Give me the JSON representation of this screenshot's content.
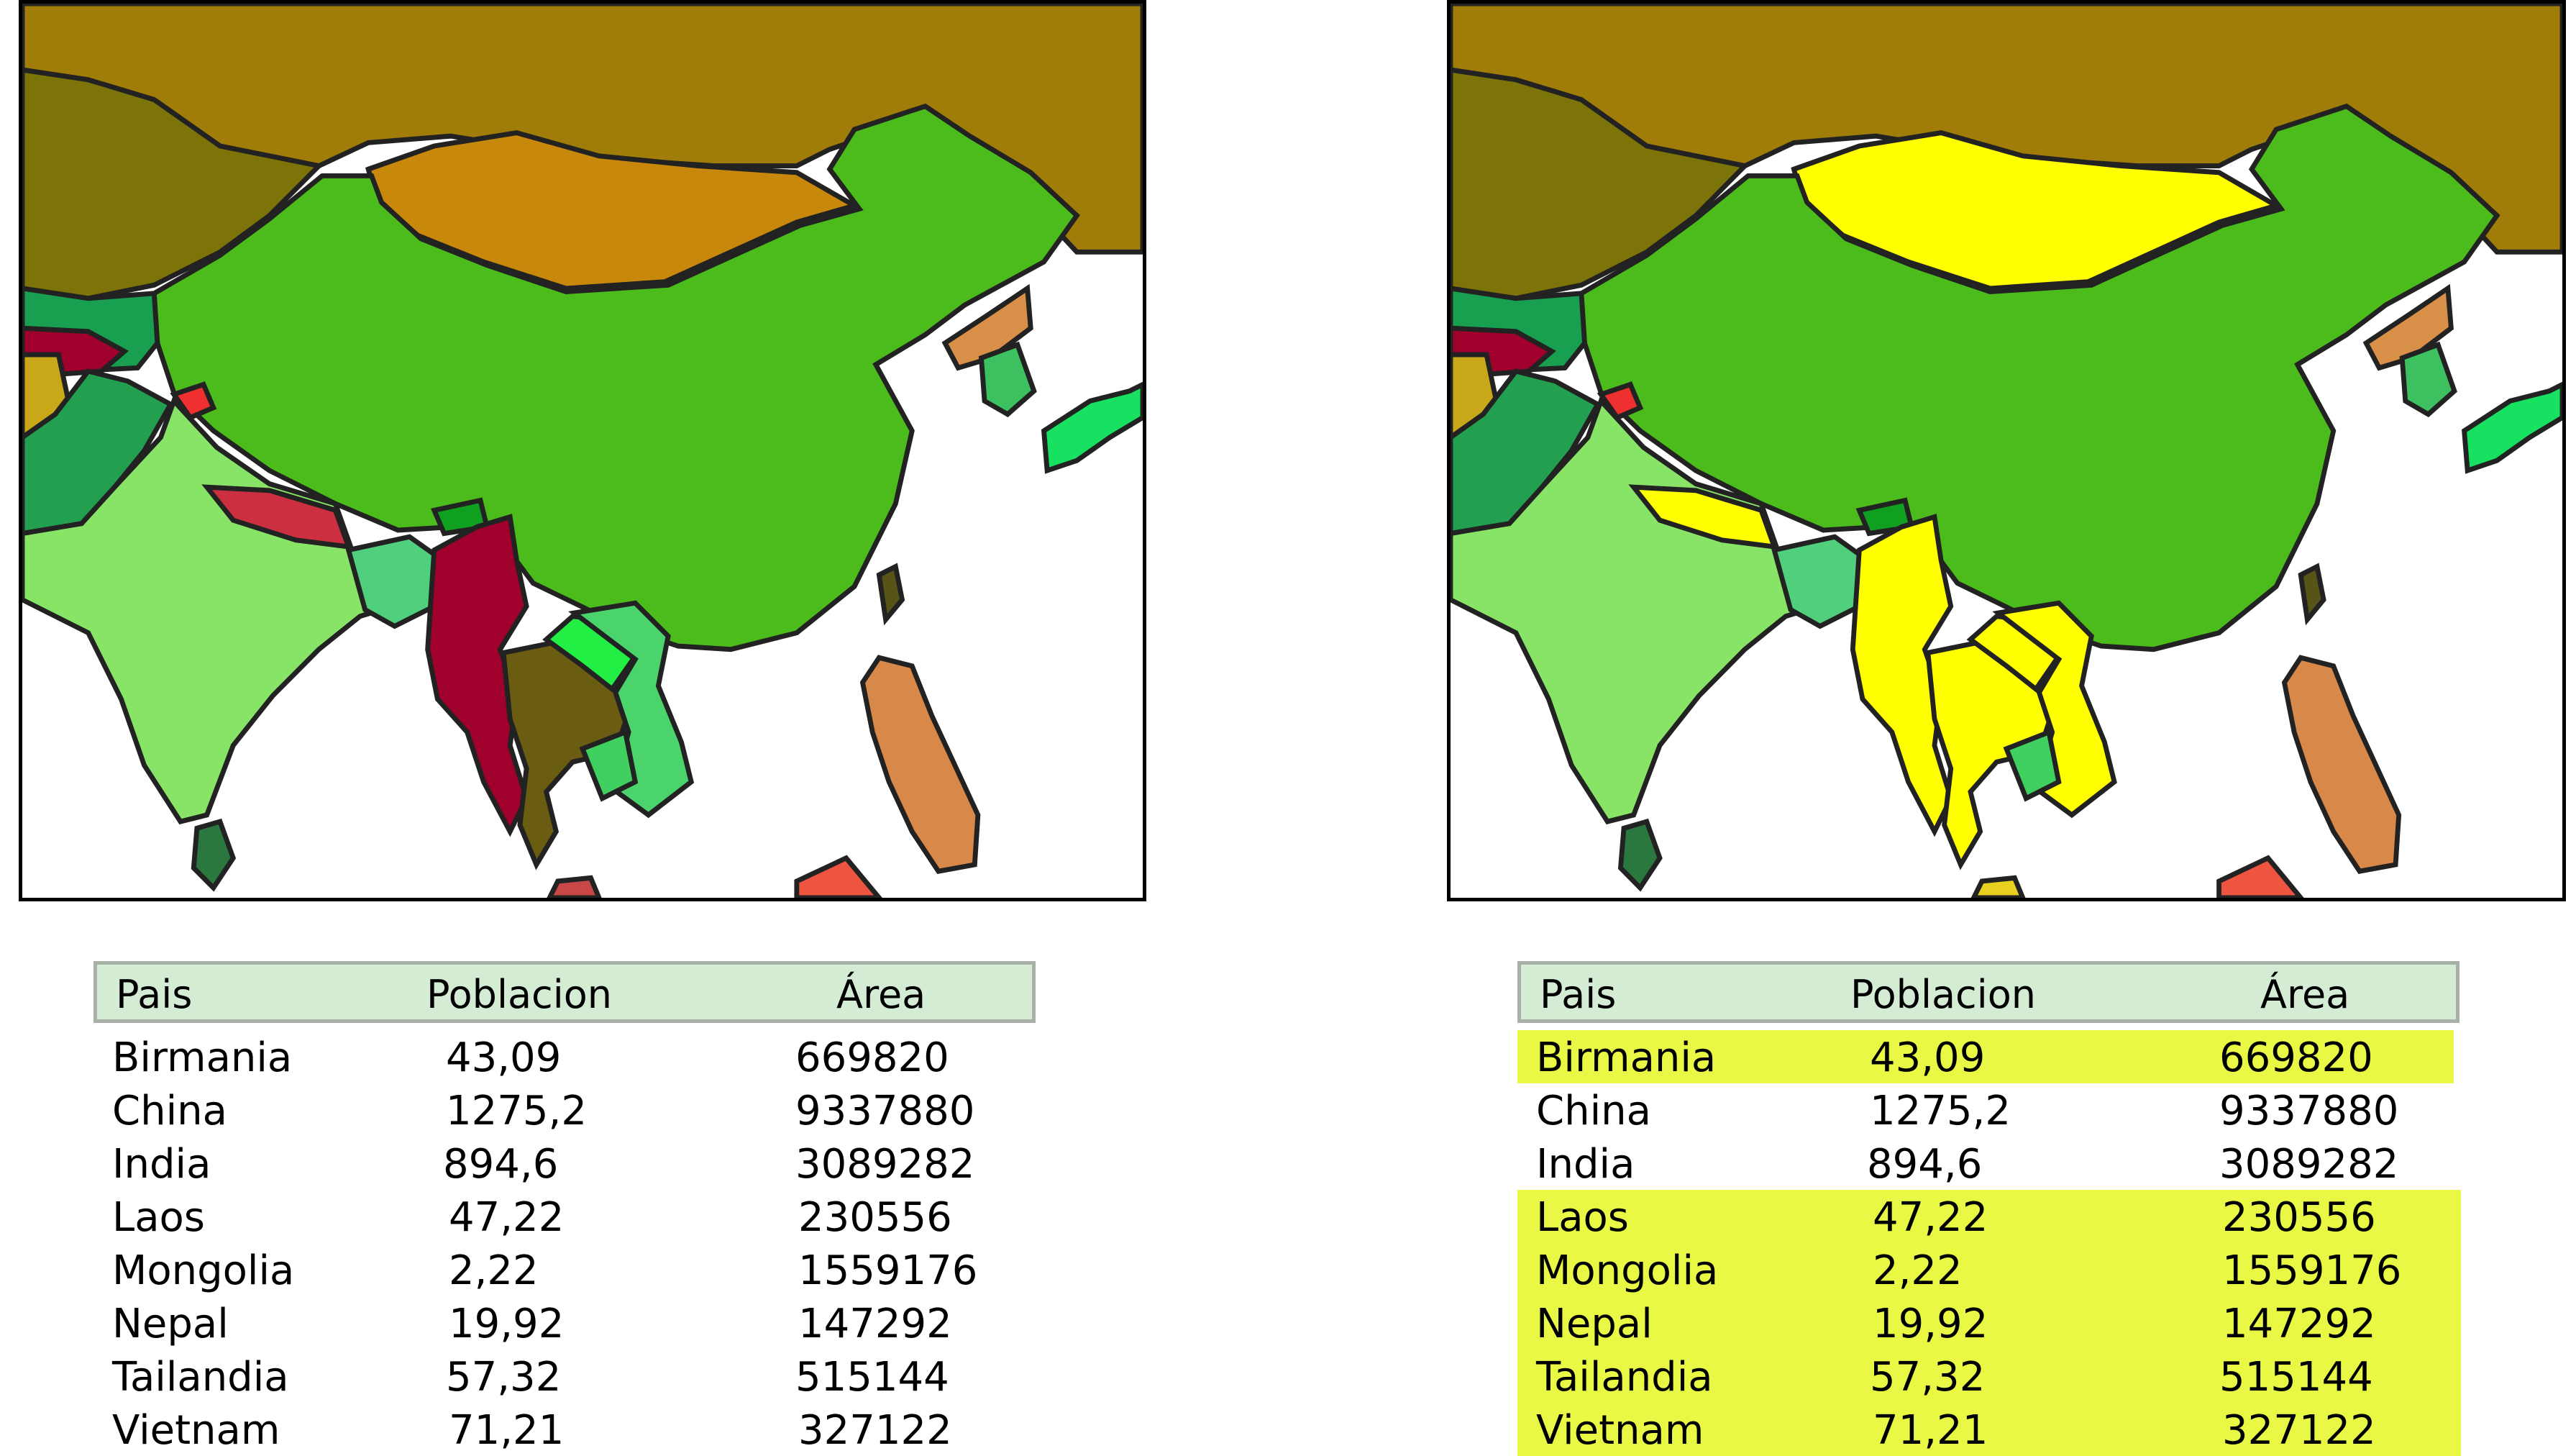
{
  "headers": {
    "country": "Pais",
    "population": "Poblacion",
    "area": "Área"
  },
  "rows": [
    {
      "country": "Birmania",
      "population": "43,09",
      "area": "669820",
      "selected": true
    },
    {
      "country": "China",
      "population": "1275,2",
      "area": "9337880",
      "selected": false
    },
    {
      "country": "India",
      "population": "894,6",
      "area": "3089282",
      "selected": false
    },
    {
      "country": "Laos",
      "population": "47,22",
      "area": "230556",
      "selected": true
    },
    {
      "country": "Mongolia",
      "population": "2,22",
      "area": "1559176",
      "selected": true
    },
    {
      "country": "Nepal",
      "population": "19,92",
      "area": "147292",
      "selected": true
    },
    {
      "country": "Tailandia",
      "population": "57,32",
      "area": "515144",
      "selected": true
    },
    {
      "country": "Vietnam",
      "population": "71,21",
      "area": "327122",
      "selected": true
    }
  ],
  "colors": {
    "highlight": "#e8f845",
    "map_selection": "#ffff00",
    "china": "#4cbc1c",
    "mongolia_left": "#c8880c",
    "burma_left": "#a0002c",
    "thailand_left": "#6a5c10",
    "laos_left": "#22ee44",
    "vietnam_left": "#4cd46c",
    "nepal_left": "#cc3040",
    "india": "#88e466",
    "russia": "#a07c08",
    "kazakhstan": "#7c7408",
    "header_bg": "#d4ecd4"
  }
}
